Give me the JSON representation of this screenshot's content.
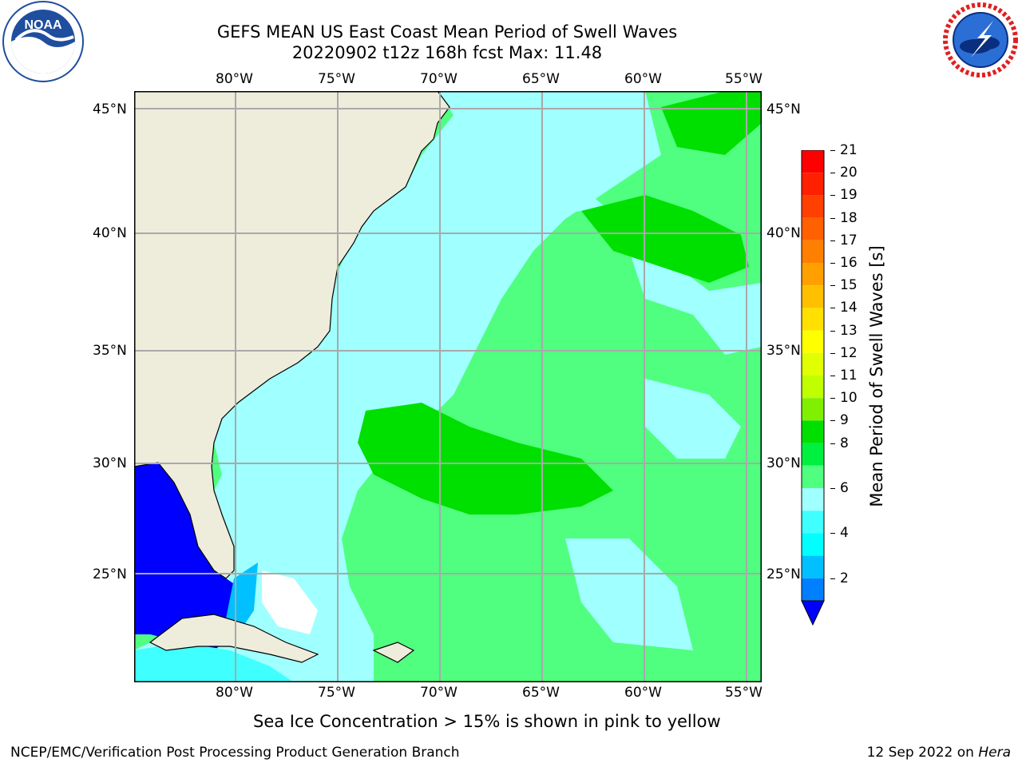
{
  "header": {
    "title_line1": "GEFS MEAN US East Coast Mean Period of Swell Waves",
    "title_line2": "20220902 t12z 168h fcst   Max: 11.48"
  },
  "logos": {
    "left": {
      "icon": "noaa-logo-icon",
      "text": "NOAA",
      "ring_text": "NATIONAL OCEANIC AND ATMOSPHERIC ADMINISTRATION · U.S. DEPARTMENT OF COMMERCE"
    },
    "right": {
      "icon": "nws-logo-icon",
      "ring_text": "NATIONAL WEATHER SERVICE"
    }
  },
  "map": {
    "lon_labels": [
      "80°W",
      "75°W",
      "70°W",
      "65°W",
      "60°W",
      "55°W"
    ],
    "lat_labels": [
      "45°N",
      "40°N",
      "35°N",
      "30°N",
      "25°N"
    ],
    "grid": true,
    "colors": {
      "land": "#eeeddc",
      "coastline": "#000000",
      "gridline": "#a9a9a9",
      "missing": "#ffffff"
    }
  },
  "colorbar": {
    "title": "Mean Period of Swell Waves [s]",
    "ticks": [
      "21",
      "20",
      "19",
      "18",
      "17",
      "16",
      "15",
      "14",
      "13",
      "12",
      "11",
      "10",
      "9",
      "8",
      "6",
      "4",
      "2"
    ],
    "colors": [
      "#ff0000",
      "#ff2000",
      "#ff4000",
      "#ff6000",
      "#ff8000",
      "#ffa000",
      "#ffc000",
      "#ffe000",
      "#ffff00",
      "#e0ff00",
      "#c0ff00",
      "#80f000",
      "#00e000",
      "#00f040",
      "#50ff80",
      "#a0ffff",
      "#40ffff",
      "#00ffff",
      "#00c0ff",
      "#0080ff"
    ],
    "extend_color": "#0000ff"
  },
  "caption": "Sea Ice Concentration > 15% is shown in pink to yellow",
  "footer": {
    "left": "NCEP/EMC/Verification Post Processing Product Generation Branch",
    "right_date": "12 Sep 2022 on",
    "right_host": "Hera"
  }
}
